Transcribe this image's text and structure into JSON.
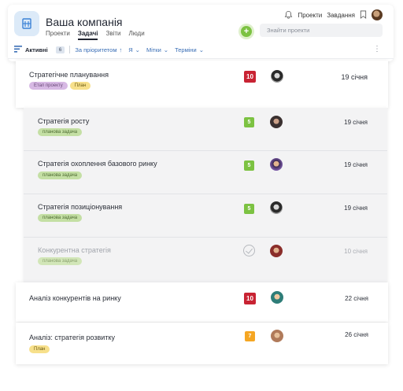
{
  "header": {
    "company": "Ваша компанія",
    "tabs": [
      "Проекти",
      "Задачі",
      "Звіти",
      "Люди"
    ],
    "active_tab": "Задачі",
    "nav_projects": "Проекти",
    "nav_tasks": "Завдання",
    "search_placeholder": "Знайти проекти"
  },
  "toolbar": {
    "status_label": "Активні",
    "count": "6",
    "sort_label": "За пріоритетом",
    "assignee_label": "Я",
    "tags_label": "Мітки",
    "deadlines_label": "Терміни"
  },
  "tasks": [
    {
      "title": "Стратегічне планування",
      "tags": [
        "Етап проекту",
        "План"
      ],
      "priority": "10",
      "priority_color": "#c82333",
      "avatar": "bw-avatar",
      "date": "19 січня"
    },
    {
      "title": "Стратегія росту",
      "tags": [
        "планова задача"
      ],
      "priority": "5",
      "priority_color": "#7cc242",
      "avatar": "dark-avatar",
      "date": "19 січня"
    },
    {
      "title": "Стратегія охоплення базового ринку",
      "tags": [
        "планова задача"
      ],
      "priority": "5",
      "priority_color": "#7cc242",
      "avatar": "purple-avatar",
      "date": "19 січня"
    },
    {
      "title": "Стратегія позиціонування",
      "tags": [
        "планова задача"
      ],
      "priority": "5",
      "priority_color": "#7cc242",
      "avatar": "bw-avatar",
      "date": "19 січня"
    },
    {
      "title": "Конкурентна стратегія",
      "tags": [
        "планова задача"
      ],
      "status": "completed",
      "avatar": "red-avatar",
      "date": "10 січня"
    },
    {
      "title": "Аналіз конкурентів на ринку",
      "tags": [],
      "priority": "10",
      "priority_color": "#c82333",
      "avatar": "teal-avatar",
      "date": "22 січня"
    },
    {
      "title": "Аналіз: стратегія розвитку",
      "tags": [
        "План"
      ],
      "priority": "7",
      "priority_color": "#f5a623",
      "avatar": "warm-avatar",
      "date": "26 січня"
    }
  ]
}
